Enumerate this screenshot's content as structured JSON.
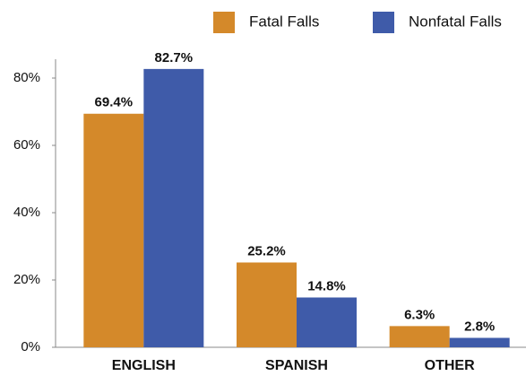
{
  "chart_data": {
    "type": "bar",
    "categories": [
      "ENGLISH",
      "SPANISH",
      "OTHER"
    ],
    "series": [
      {
        "name": "Fatal Falls",
        "color": "#d4892a",
        "values": [
          69.4,
          25.2,
          6.3
        ],
        "value_labels": [
          "69.4%",
          "25.2%",
          "6.3%"
        ]
      },
      {
        "name": "Nonfatal Falls",
        "color": "#3f5ba9",
        "values": [
          82.7,
          14.8,
          2.8
        ],
        "value_labels": [
          "82.7%",
          "14.8%",
          "2.8%"
        ]
      }
    ],
    "ylim": [
      0,
      85.6
    ],
    "yticks": [
      {
        "value": 0,
        "label": "0%"
      },
      {
        "value": 20,
        "label": "20%"
      },
      {
        "value": 40,
        "label": "40%"
      },
      {
        "value": 60,
        "label": "60%"
      },
      {
        "value": 80,
        "label": "80%"
      }
    ],
    "grid": false,
    "legend": "top-right"
  }
}
